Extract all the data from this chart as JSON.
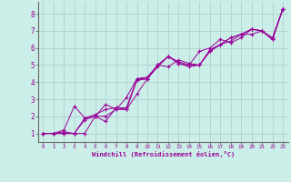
{
  "title": "",
  "xlabel": "Windchill (Refroidissement éolien,°C)",
  "ylabel": "",
  "background_color": "#cceee8",
  "grid_color": "#aacccc",
  "line_color": "#990099",
  "marker_color": "#990099",
  "xlim": [
    -0.5,
    23.5
  ],
  "ylim": [
    0.5,
    8.7
  ],
  "xticks": [
    0,
    1,
    2,
    3,
    4,
    5,
    6,
    7,
    8,
    9,
    10,
    11,
    12,
    13,
    14,
    15,
    16,
    17,
    18,
    19,
    20,
    21,
    22,
    23
  ],
  "yticks": [
    1,
    2,
    3,
    4,
    5,
    6,
    7,
    8
  ],
  "series1": [
    [
      0,
      1.0
    ],
    [
      1,
      1.0
    ],
    [
      2,
      1.0
    ],
    [
      3,
      1.0
    ],
    [
      4,
      1.8
    ],
    [
      5,
      2.0
    ],
    [
      6,
      2.7
    ],
    [
      7,
      2.4
    ],
    [
      8,
      3.1
    ],
    [
      9,
      4.2
    ],
    [
      10,
      4.2
    ],
    [
      11,
      4.9
    ],
    [
      12,
      5.5
    ],
    [
      13,
      5.2
    ],
    [
      14,
      5.0
    ],
    [
      15,
      5.8
    ],
    [
      16,
      6.0
    ],
    [
      17,
      6.5
    ],
    [
      18,
      6.3
    ],
    [
      19,
      6.6
    ],
    [
      20,
      7.1
    ],
    [
      21,
      7.0
    ],
    [
      22,
      6.5
    ],
    [
      23,
      8.3
    ]
  ],
  "series2": [
    [
      0,
      1.0
    ],
    [
      1,
      1.0
    ],
    [
      2,
      1.1
    ],
    [
      3,
      1.0
    ],
    [
      4,
      1.9
    ],
    [
      5,
      2.0
    ],
    [
      6,
      1.7
    ],
    [
      7,
      2.5
    ],
    [
      8,
      2.4
    ],
    [
      9,
      3.3
    ],
    [
      10,
      4.2
    ],
    [
      11,
      5.0
    ],
    [
      12,
      4.9
    ],
    [
      13,
      5.3
    ],
    [
      14,
      5.1
    ],
    [
      15,
      5.0
    ],
    [
      16,
      5.8
    ],
    [
      17,
      6.2
    ],
    [
      18,
      6.6
    ],
    [
      19,
      6.8
    ],
    [
      20,
      6.8
    ],
    [
      21,
      7.0
    ],
    [
      22,
      6.6
    ],
    [
      23,
      8.3
    ]
  ],
  "series3": [
    [
      0,
      1.0
    ],
    [
      1,
      1.0
    ],
    [
      2,
      1.2
    ],
    [
      3,
      2.6
    ],
    [
      4,
      1.9
    ],
    [
      5,
      2.1
    ],
    [
      6,
      2.4
    ],
    [
      7,
      2.5
    ],
    [
      8,
      2.5
    ],
    [
      9,
      4.2
    ],
    [
      10,
      4.3
    ],
    [
      11,
      5.0
    ],
    [
      12,
      5.5
    ],
    [
      13,
      5.1
    ],
    [
      14,
      5.0
    ],
    [
      15,
      5.0
    ],
    [
      16,
      5.9
    ],
    [
      17,
      6.2
    ],
    [
      18,
      6.6
    ],
    [
      19,
      6.8
    ],
    [
      20,
      7.1
    ],
    [
      21,
      7.0
    ],
    [
      22,
      6.5
    ],
    [
      23,
      8.3
    ]
  ],
  "series4": [
    [
      0,
      1.0
    ],
    [
      1,
      1.0
    ],
    [
      2,
      1.0
    ],
    [
      3,
      1.0
    ],
    [
      4,
      1.0
    ],
    [
      5,
      2.0
    ],
    [
      6,
      2.0
    ],
    [
      7,
      2.4
    ],
    [
      8,
      2.4
    ],
    [
      9,
      4.1
    ],
    [
      10,
      4.2
    ],
    [
      11,
      5.0
    ],
    [
      12,
      5.5
    ],
    [
      13,
      5.1
    ],
    [
      14,
      4.9
    ],
    [
      15,
      5.0
    ],
    [
      16,
      5.8
    ],
    [
      17,
      6.2
    ],
    [
      18,
      6.4
    ],
    [
      19,
      6.8
    ],
    [
      20,
      7.1
    ],
    [
      21,
      7.0
    ],
    [
      22,
      6.5
    ],
    [
      23,
      8.3
    ]
  ]
}
